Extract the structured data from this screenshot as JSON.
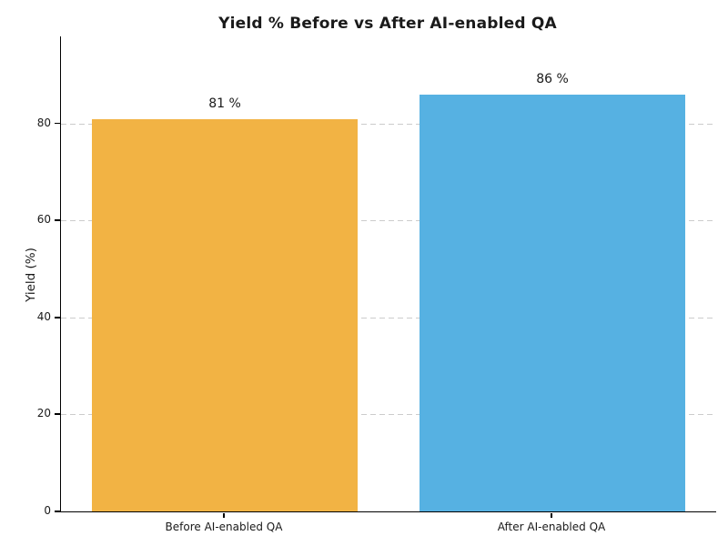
{
  "chart_data": {
    "type": "bar",
    "title": "Yield % Before vs After AI-enabled QA",
    "ylabel": "Yield (%)",
    "xlabel": "",
    "categories": [
      "Before AI-enabled QA",
      "After AI-enabled QA"
    ],
    "values": [
      81,
      86
    ],
    "bar_value_labels": [
      "81 %",
      "86 %"
    ],
    "bar_colors": [
      "#F2B344",
      "#56B1E2"
    ],
    "yticks": [
      0,
      20,
      40,
      60,
      80
    ],
    "ylim": [
      0,
      98
    ],
    "grid": "horizontal dashed gray lines at y ticks",
    "legend": "none",
    "spines": "left and bottom only",
    "background_color": "#ffffff",
    "title_color": "#1a1a1a"
  }
}
